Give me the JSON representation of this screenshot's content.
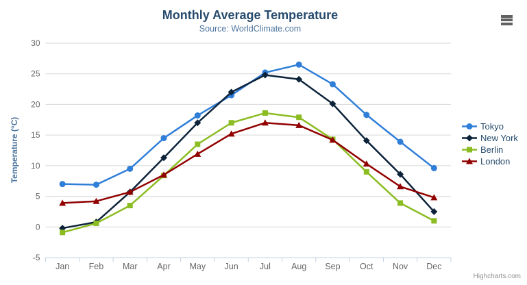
{
  "header": {
    "title": "Monthly Average Temperature",
    "subtitle": "Source: WorldClimate.com"
  },
  "credits": "Highcharts.com",
  "chart_data": {
    "type": "line",
    "title": "Monthly Average Temperature",
    "subtitle": "Source: WorldClimate.com",
    "categories": [
      "Jan",
      "Feb",
      "Mar",
      "Apr",
      "May",
      "Jun",
      "Jul",
      "Aug",
      "Sep",
      "Oct",
      "Nov",
      "Dec"
    ],
    "series": [
      {
        "name": "Tokyo",
        "color": "#2f7ed8",
        "marker": "circle",
        "values": [
          7.0,
          6.9,
          9.5,
          14.5,
          18.2,
          21.5,
          25.2,
          26.5,
          23.3,
          18.3,
          13.9,
          9.6
        ]
      },
      {
        "name": "New York",
        "color": "#0d233a",
        "marker": "diamond",
        "values": [
          -0.2,
          0.8,
          5.7,
          11.3,
          17.0,
          22.0,
          24.8,
          24.1,
          20.1,
          14.1,
          8.6,
          2.5
        ]
      },
      {
        "name": "Berlin",
        "color": "#8bbc21",
        "marker": "square",
        "values": [
          -0.9,
          0.6,
          3.5,
          8.4,
          13.5,
          17.0,
          18.6,
          17.9,
          14.3,
          9.0,
          3.9,
          1.0
        ]
      },
      {
        "name": "London",
        "color": "#910000",
        "marker": "triangle",
        "values": [
          3.9,
          4.2,
          5.7,
          8.5,
          11.9,
          15.2,
          17.0,
          16.6,
          14.2,
          10.3,
          6.6,
          4.8
        ]
      }
    ],
    "xlabel": "",
    "ylabel": "Temperature (°C)",
    "ylim": [
      -5,
      30
    ],
    "ytick_interval": 5,
    "grid": "horizontal",
    "legend_position": "right",
    "style": {
      "title_color": "#274b6d",
      "subtitle_color": "#4d759e",
      "axis_title_color": "#4d759e",
      "axis_label_color": "#666666",
      "grid_color": "#d8d8d8",
      "axis_line_color": "#c0d0e0",
      "tick_color": "#c0d0e0",
      "legend_text_color": "#274b6d",
      "credits_color": "#909090",
      "menu_icon_color": "#616161",
      "background_color": "#ffffff"
    }
  }
}
